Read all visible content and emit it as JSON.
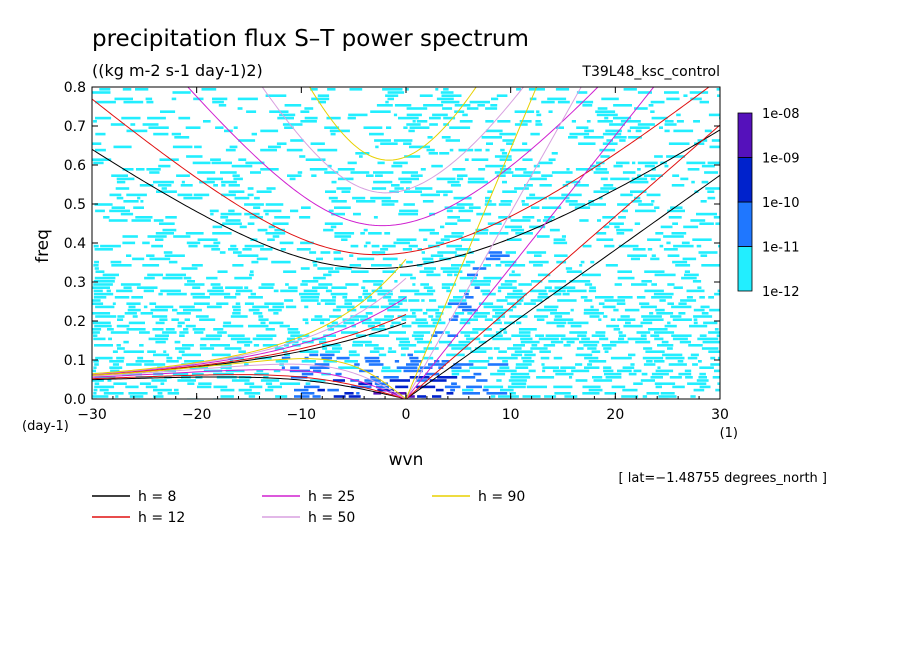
{
  "chart_data": {
    "type": "heatmap",
    "title": "precipitation flux S–T power spectrum",
    "units": "((kg m-2 s-1 day-1)2)",
    "run_label": "T39L48_ksc_control",
    "xlabel": "wvn",
    "ylabel": "freq",
    "x_unit": "(1)",
    "y_unit": "(day-1)",
    "xlim": [
      -30,
      30
    ],
    "ylim": [
      0,
      0.8
    ],
    "x_ticks": [
      -30,
      -20,
      -10,
      0,
      10,
      20,
      30
    ],
    "x_tick_labels": [
      "−30",
      "−20",
      "−10",
      "0",
      "10",
      "20",
      "30"
    ],
    "y_ticks": [
      0,
      0.1,
      0.2,
      0.3,
      0.4,
      0.5,
      0.6,
      0.7,
      0.8
    ],
    "y_tick_labels": [
      "0.0",
      "0.1",
      "0.2",
      "0.3",
      "0.4",
      "0.5",
      "0.6",
      "0.7",
      "0.8"
    ],
    "latitude_note": "[ lat=−1.48755 degrees_north ]",
    "colorbar": {
      "levels": [
        "1e-12",
        "1e-11",
        "1e-10",
        "1e-09",
        "1e-08"
      ],
      "colors": [
        "#22eeff",
        "#1f77ff",
        "#0022cc",
        "#5511bb"
      ]
    },
    "dispersion_curves": [
      {
        "h": 8,
        "label": "h =  8",
        "color": "#000000"
      },
      {
        "h": 12,
        "label": "h = 12",
        "color": "#e01010"
      },
      {
        "h": 25,
        "label": "h = 25",
        "color": "#d020d0"
      },
      {
        "h": 50,
        "label": "h = 50",
        "color": "#d8a0e0"
      },
      {
        "h": 90,
        "label": "h = 90",
        "color": "#e8d000"
      }
    ]
  }
}
